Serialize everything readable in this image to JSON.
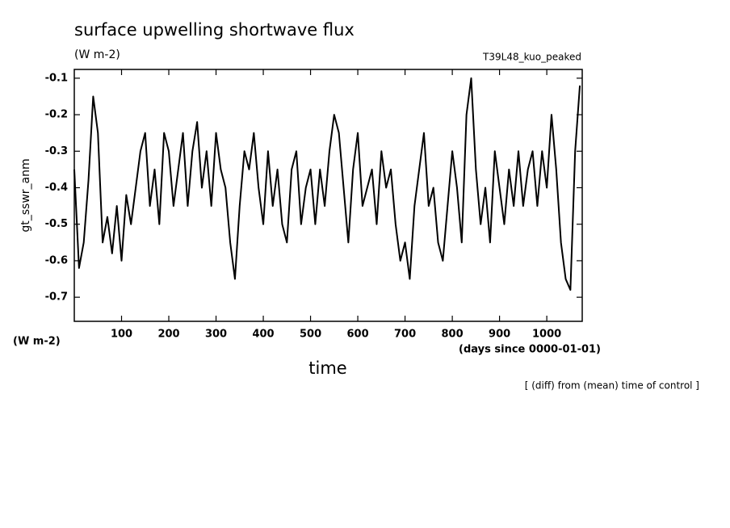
{
  "chart_data": {
    "type": "line",
    "title": "surface upwelling shortwave flux",
    "units": "(W m-2)",
    "experiment": "T39L48_kuo_peaked",
    "y_label": "gt_sswr_anm",
    "y_units": "(W m-2)",
    "x_units": "(days since 0000-01-01)",
    "x_label": "time",
    "footnote": "[ (diff) from (mean) time of control ]",
    "color": "#000000",
    "xlim": [
      0,
      1075
    ],
    "ylim": [
      -0.766,
      -0.076
    ],
    "xticks": [
      100,
      200,
      300,
      400,
      500,
      600,
      700,
      800,
      900,
      1000
    ],
    "yticks": [
      -0.1,
      -0.2,
      -0.3,
      -0.4,
      -0.5,
      -0.6,
      -0.7
    ],
    "x": [
      0,
      10,
      20,
      30,
      40,
      50,
      60,
      70,
      80,
      90,
      100,
      110,
      120,
      130,
      140,
      150,
      160,
      170,
      180,
      190,
      200,
      210,
      220,
      230,
      240,
      250,
      260,
      270,
      280,
      290,
      300,
      310,
      320,
      330,
      340,
      350,
      360,
      370,
      380,
      390,
      400,
      410,
      420,
      430,
      440,
      450,
      460,
      470,
      480,
      490,
      500,
      510,
      520,
      530,
      540,
      550,
      560,
      570,
      580,
      590,
      600,
      610,
      620,
      630,
      640,
      650,
      660,
      670,
      680,
      690,
      700,
      710,
      720,
      730,
      740,
      750,
      760,
      770,
      780,
      790,
      800,
      810,
      820,
      830,
      840,
      850,
      860,
      870,
      880,
      890,
      900,
      910,
      920,
      930,
      940,
      950,
      960,
      970,
      980,
      990,
      1000,
      1010,
      1020,
      1030,
      1040,
      1050,
      1060,
      1070
    ],
    "values": [
      -0.35,
      -0.62,
      -0.55,
      -0.38,
      -0.15,
      -0.25,
      -0.55,
      -0.48,
      -0.58,
      -0.45,
      -0.6,
      -0.42,
      -0.5,
      -0.4,
      -0.3,
      -0.25,
      -0.45,
      -0.35,
      -0.5,
      -0.25,
      -0.3,
      -0.45,
      -0.35,
      -0.25,
      -0.45,
      -0.3,
      -0.22,
      -0.4,
      -0.3,
      -0.45,
      -0.25,
      -0.35,
      -0.4,
      -0.55,
      -0.65,
      -0.45,
      -0.3,
      -0.35,
      -0.25,
      -0.4,
      -0.5,
      -0.3,
      -0.45,
      -0.35,
      -0.5,
      -0.55,
      -0.35,
      -0.3,
      -0.5,
      -0.4,
      -0.35,
      -0.5,
      -0.35,
      -0.45,
      -0.3,
      -0.2,
      -0.25,
      -0.4,
      -0.55,
      -0.35,
      -0.25,
      -0.45,
      -0.4,
      -0.35,
      -0.5,
      -0.3,
      -0.4,
      -0.35,
      -0.5,
      -0.6,
      -0.55,
      -0.65,
      -0.45,
      -0.35,
      -0.25,
      -0.45,
      -0.4,
      -0.55,
      -0.6,
      -0.45,
      -0.3,
      -0.4,
      -0.55,
      -0.2,
      -0.1,
      -0.35,
      -0.5,
      -0.4,
      -0.55,
      -0.3,
      -0.4,
      -0.5,
      -0.35,
      -0.45,
      -0.3,
      -0.45,
      -0.35,
      -0.3,
      -0.45,
      -0.3,
      -0.4,
      -0.2,
      -0.35,
      -0.55,
      -0.65,
      -0.68,
      -0.3,
      -0.12
    ]
  }
}
